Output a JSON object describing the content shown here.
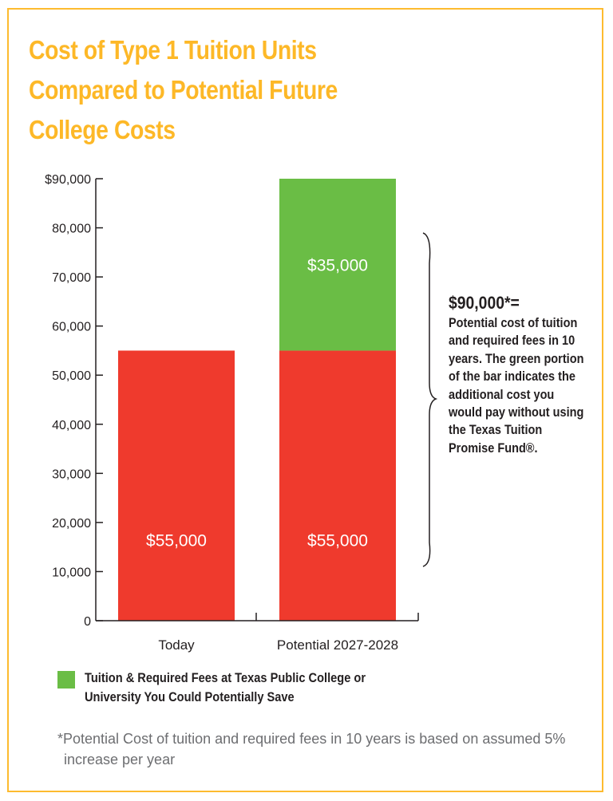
{
  "title": "Cost of Type 1 Tuition Units Compared to Potential Future College Costs",
  "chart_data": {
    "type": "bar",
    "stacked": true,
    "categories": [
      "Today",
      "Potential 2027-2028"
    ],
    "series": [
      {
        "values": [
          55000,
          55000
        ],
        "color": "#EF3A2D",
        "labels": [
          "$55,000",
          "$55,000"
        ]
      },
      {
        "name": "Tuition & Required Fees at Texas Public College or University You Could Potentially Save",
        "values": [
          0,
          35000
        ],
        "color": "#6ABD45",
        "labels": [
          "",
          "$35,000"
        ]
      }
    ],
    "ylim": [
      0,
      90000
    ],
    "yticks": [
      0,
      10000,
      20000,
      30000,
      40000,
      50000,
      60000,
      70000,
      80000,
      90000
    ],
    "ytick_labels": [
      "0",
      "10,000",
      "20,000",
      "30,000",
      "40,000",
      "50,000",
      "60,000",
      "70,000",
      "80,000",
      "$90,000"
    ],
    "legend_position": "bottom-left",
    "grid": false
  },
  "annotation": {
    "headline": "$90,000*=",
    "text": "Potential cost of tuition and required fees in 10 years. The green portion of the bar indicates the additional cost you would pay without using the Texas Tuition Promise Fund®."
  },
  "footnote": "*Potential Cost of tuition and required fees in 10 years is based on assumed 5% increase per year"
}
